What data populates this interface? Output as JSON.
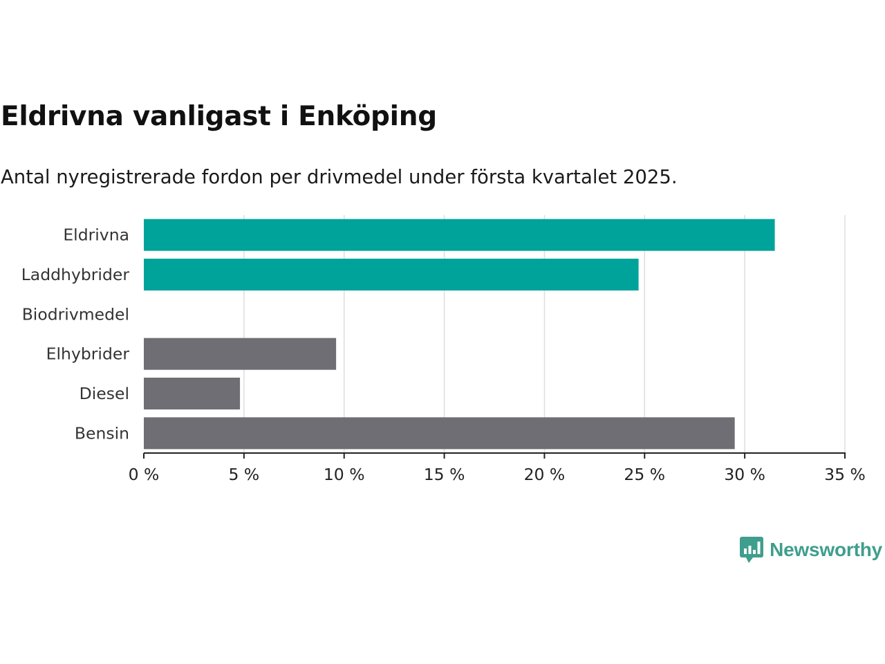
{
  "title": "Eldrivna vanligast i Enköping",
  "subtitle": "Antal nyregistrerade fordon per drivmedel under första kvartalet 2025.",
  "brand": {
    "name": "Newsworthy",
    "icon": "newsworthy-logo-icon",
    "color": "#3f9e8d"
  },
  "colors": {
    "highlight": "#00a39a",
    "other": "#6f6e74",
    "grid": "#dddddd",
    "axis": "#222222"
  },
  "chart_data": {
    "type": "bar",
    "orientation": "horizontal",
    "categories": [
      "Eldrivna",
      "Laddhybrider",
      "Biodrivmedel",
      "Elhybrider",
      "Diesel",
      "Bensin"
    ],
    "values": [
      31.5,
      24.7,
      0,
      9.6,
      4.8,
      29.5
    ],
    "highlight": [
      true,
      true,
      false,
      false,
      false,
      false
    ],
    "xlim": [
      0,
      35
    ],
    "xticks": [
      0,
      5,
      10,
      15,
      20,
      25,
      30,
      35
    ],
    "tick_labels": [
      "0 %",
      "5 %",
      "10 %",
      "15 %",
      "20 %",
      "25 %",
      "30 %",
      "35 %"
    ],
    "unit": "%",
    "grid": true,
    "legend": "none"
  }
}
